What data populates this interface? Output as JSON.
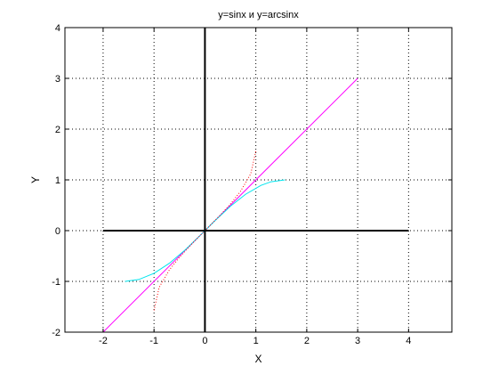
{
  "chart_data": {
    "type": "line",
    "title": "y=sinx и y=arcsinx",
    "xlabel": "X",
    "ylabel": "Y",
    "xlim": [
      -2.75,
      4.85
    ],
    "ylim": [
      -2,
      4
    ],
    "x_ticks": [
      -2,
      -1,
      0,
      1,
      2,
      3,
      4
    ],
    "y_ticks": [
      -2,
      -1,
      0,
      1,
      2,
      3,
      4
    ],
    "x_tick_labels": [
      "-2",
      "-1",
      "0",
      "1",
      "2",
      "3",
      "4"
    ],
    "y_tick_labels": [
      "-2",
      "-1",
      "0",
      "1",
      "2",
      "3",
      "4"
    ],
    "grid": true,
    "axes_lines": {
      "horizontal": {
        "x": [
          -2,
          4
        ],
        "y": 0
      },
      "vertical": {
        "x": 0,
        "y": [
          -2,
          4
        ]
      }
    },
    "series": [
      {
        "style": "solid",
        "color": "#ff00ff",
        "x": [
          -2,
          3
        ],
        "y": [
          -2,
          3
        ]
      },
      {
        "style": "solid",
        "color": "#00e5ee",
        "x": [
          -1.5708,
          -1.3,
          -1.0,
          -0.7,
          -0.4,
          -0.1,
          0.2,
          0.5,
          0.8,
          1.1,
          1.3,
          1.5708
        ],
        "y": [
          -1.0,
          -0.9636,
          -0.8415,
          -0.6442,
          -0.3894,
          -0.0998,
          0.1987,
          0.4794,
          0.7174,
          0.8912,
          0.9636,
          1.0
        ]
      },
      {
        "style": "dotted",
        "color": "#ff0000",
        "x": [
          -1.0,
          -0.9,
          -0.7,
          -0.5,
          -0.3,
          0.0,
          0.3,
          0.5,
          0.7,
          0.9,
          1.0
        ],
        "y": [
          -1.5708,
          -1.1198,
          -0.7754,
          -0.5236,
          -0.3047,
          0.0,
          0.3047,
          0.5236,
          0.7754,
          1.1198,
          1.5708
        ]
      }
    ],
    "colors": {
      "axes": "#000000",
      "grid": "#000000",
      "background": "#ffffff"
    }
  }
}
